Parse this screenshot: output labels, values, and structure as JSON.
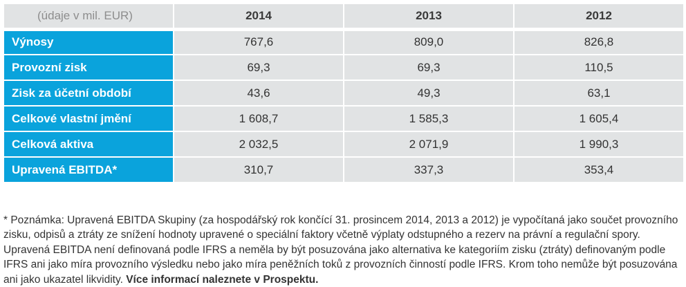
{
  "table": {
    "unit_label": "(údaje v mil. EUR)",
    "years": [
      "2014",
      "2013",
      "2012"
    ],
    "rows": [
      {
        "label": "Výnosy",
        "values": [
          "767,6",
          "809,0",
          "826,8"
        ]
      },
      {
        "label": "Provozní zisk",
        "values": [
          "69,3",
          "69,3",
          "110,5"
        ]
      },
      {
        "label": "Zisk za účetní období",
        "values": [
          "43,6",
          "49,3",
          "63,1"
        ]
      },
      {
        "label": "Celkové vlastní jmění",
        "values": [
          "1 608,7",
          "1 585,3",
          "1 605,4"
        ]
      },
      {
        "label": "Celková aktiva",
        "values": [
          "2 032,5",
          "2 071,9",
          "1 990,3"
        ]
      },
      {
        "label": "Upravená EBITDA*",
        "values": [
          "310,7",
          "337,3",
          "353,4"
        ]
      }
    ]
  },
  "note": {
    "text": "* Poznámka: Upravená EBITDA Skupiny (za hospodářský rok končící 31. prosincem 2014, 2013 a 2012) je vypočítaná jako součet provozního zisku, odpisů a ztráty ze snížení hodnoty upravené o speciální faktory včetně výplaty odstupného a rezerv na právní a regulační spory. Upravená EBITDA není definovaná podle IFRS a neměla by být posuzována jako alternativa ke kategoriím zisku (ztráty) definovaným podle IFRS ani jako míra provozního výsledku nebo jako míra peněžních toků z provozních činností podle IFRS. Krom toho nemůže být posuzována ani jako ukazatel likvidity. ",
    "bold_text": "Více informací naleznete v Prospektu."
  },
  "colors": {
    "row_label_bg": "#0aa3dc",
    "cell_bg": "#e1e3e4",
    "unit_text": "#8d8d8d"
  }
}
